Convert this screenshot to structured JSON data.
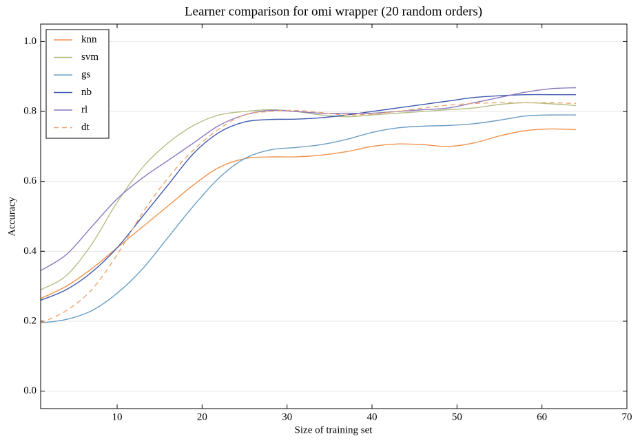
{
  "chart_data": {
    "type": "line",
    "title": "Learner comparison for omi wrapper (20 random orders)",
    "x_label": "Size of training set",
    "y_label": "Accuracy",
    "x": [
      1,
      4,
      7,
      10,
      13,
      16,
      19,
      22,
      25,
      28,
      31,
      34,
      37,
      40,
      43,
      46,
      49,
      52,
      55,
      58,
      61,
      64
    ],
    "series": [
      {
        "name": "knn",
        "color": "#f0914a",
        "linestyle": "solid",
        "values": [
          0.265,
          0.3,
          0.35,
          0.41,
          0.47,
          0.53,
          0.59,
          0.64,
          0.665,
          0.67,
          0.67,
          0.675,
          0.685,
          0.7,
          0.707,
          0.705,
          0.7,
          0.71,
          0.73,
          0.745,
          0.75,
          0.748
        ]
      },
      {
        "name": "svm",
        "color": "#b3bf82",
        "linestyle": "solid",
        "values": [
          0.29,
          0.33,
          0.42,
          0.54,
          0.64,
          0.71,
          0.76,
          0.79,
          0.8,
          0.805,
          0.8,
          0.79,
          0.785,
          0.79,
          0.795,
          0.8,
          0.805,
          0.81,
          0.82,
          0.825,
          0.822,
          0.817
        ]
      },
      {
        "name": "gs",
        "color": "#6b9ec6",
        "linestyle": "solid",
        "values": [
          0.195,
          0.205,
          0.23,
          0.28,
          0.35,
          0.44,
          0.53,
          0.61,
          0.665,
          0.69,
          0.697,
          0.705,
          0.72,
          0.74,
          0.753,
          0.758,
          0.76,
          0.765,
          0.775,
          0.787,
          0.79,
          0.79
        ]
      },
      {
        "name": "nb",
        "color": "#3d58ae",
        "linestyle": "solid",
        "values": [
          0.26,
          0.29,
          0.34,
          0.41,
          0.5,
          0.59,
          0.68,
          0.74,
          0.77,
          0.777,
          0.778,
          0.782,
          0.79,
          0.8,
          0.81,
          0.82,
          0.83,
          0.84,
          0.845,
          0.848,
          0.848,
          0.848
        ]
      },
      {
        "name": "rl",
        "color": "#8a76bf",
        "linestyle": "solid",
        "values": [
          0.345,
          0.39,
          0.47,
          0.55,
          0.61,
          0.66,
          0.71,
          0.76,
          0.79,
          0.803,
          0.8,
          0.795,
          0.795,
          0.795,
          0.8,
          0.805,
          0.81,
          0.825,
          0.84,
          0.855,
          0.865,
          0.868
        ]
      },
      {
        "name": "dt",
        "color": "#f0a36c",
        "linestyle": "dashed",
        "values": [
          0.195,
          0.23,
          0.29,
          0.39,
          0.51,
          0.61,
          0.69,
          0.75,
          0.79,
          0.8,
          0.803,
          0.797,
          0.79,
          0.793,
          0.8,
          0.81,
          0.818,
          0.823,
          0.825,
          0.825,
          0.825,
          0.823
        ]
      }
    ],
    "xlim": [
      1,
      70
    ],
    "xticks": [
      10,
      20,
      30,
      40,
      50,
      60,
      70
    ],
    "ylim": [
      -0.05,
      1.05
    ],
    "yticks": [
      {
        "value": 0,
        "label": "0.0"
      },
      0.2,
      0.4,
      0.6,
      0.8,
      {
        "value": 1,
        "label": "1.0"
      }
    ],
    "grid": true,
    "legend": "upper left"
  }
}
